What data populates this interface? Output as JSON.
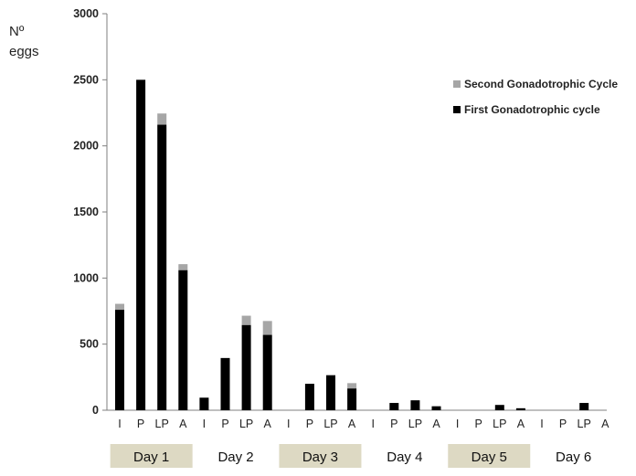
{
  "chart_data": {
    "type": "bar",
    "stacked": true,
    "ylabel_line1": "Nº",
    "ylabel_line2": "eggs",
    "ylim": [
      0,
      3000
    ],
    "yticks": [
      0,
      500,
      1000,
      1500,
      2000,
      2500,
      3000
    ],
    "categories": [
      "I",
      "P",
      "LP",
      "A",
      "I",
      "P",
      "LP",
      "A",
      "I",
      "P",
      "LP",
      "A",
      "I",
      "P",
      "LP",
      "A",
      "I",
      "P",
      "LP",
      "A",
      "I",
      "P",
      "LP",
      "A"
    ],
    "groups": [
      {
        "label": "Day 1",
        "shaded": true
      },
      {
        "label": "Day 2",
        "shaded": false
      },
      {
        "label": "Day 3",
        "shaded": true
      },
      {
        "label": "Day 4",
        "shaded": false
      },
      {
        "label": "Day 5",
        "shaded": true
      },
      {
        "label": "Day 6",
        "shaded": false
      }
    ],
    "series": [
      {
        "name": "First Gonadotrophic cycle",
        "color": "#000000",
        "values": [
          760,
          2500,
          2160,
          1060,
          95,
          395,
          645,
          570,
          0,
          200,
          265,
          165,
          0,
          55,
          75,
          30,
          0,
          0,
          40,
          15,
          0,
          0,
          55,
          0
        ]
      },
      {
        "name": "Second Gonadotrophic Cycle",
        "color": "#a6a6a6",
        "values": [
          45,
          0,
          85,
          45,
          0,
          0,
          70,
          105,
          0,
          0,
          0,
          40,
          0,
          0,
          0,
          0,
          0,
          0,
          0,
          0,
          0,
          0,
          0,
          0
        ]
      }
    ],
    "legend_position": "top-right",
    "group_shade_color": "#ddd9c3"
  }
}
